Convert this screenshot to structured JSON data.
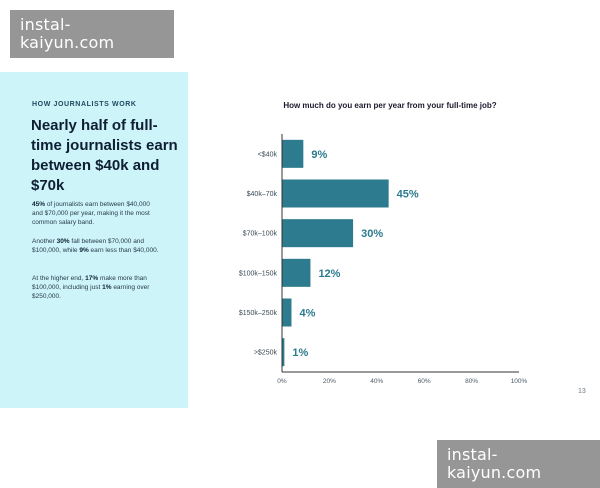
{
  "watermark": {
    "text": "instal-kaiyun.com"
  },
  "sidebar": {
    "kicker": "HOW JOURNALISTS WORK",
    "headline": "Nearly half of full-time journalists earn between $40k and $70k",
    "p1": {
      "strong": "45%",
      "rest": " of journalists earn between $40,000 and $70,000 per year, making it the most common salary band."
    },
    "p2": {
      "a": "Another ",
      "b1": "30%",
      "c": " fall between $70,000 and $100,000, while ",
      "b2": "9%",
      "d": " earn less than $40,000."
    },
    "p3": {
      "a": "At the higher end, ",
      "b1": "17%",
      "c": " make more than $100,000, including just ",
      "b2": "1%",
      "d": " earning over $250,000."
    }
  },
  "page_number": "13",
  "colors": {
    "bar": "#2c7b8e",
    "label": "#2c7b8e",
    "axis": "#333333",
    "panel": "#ccf4f9"
  },
  "chart_data": {
    "type": "bar",
    "orientation": "horizontal",
    "title": "How much do you earn per year from your full-time job?",
    "categories": [
      "<$40k",
      "$40k–70k",
      "$70k–100k",
      "$100k–150k",
      "$150k–250k",
      ">$250k"
    ],
    "values": [
      9,
      45,
      30,
      12,
      4,
      1
    ],
    "value_labels": [
      "9%",
      "45%",
      "30%",
      "12%",
      "4%",
      "1%"
    ],
    "xlim": [
      0,
      100
    ],
    "xticks": [
      "0%",
      "20%",
      "40%",
      "60%",
      "80%",
      "100%"
    ],
    "grid": false,
    "legend": "none"
  }
}
